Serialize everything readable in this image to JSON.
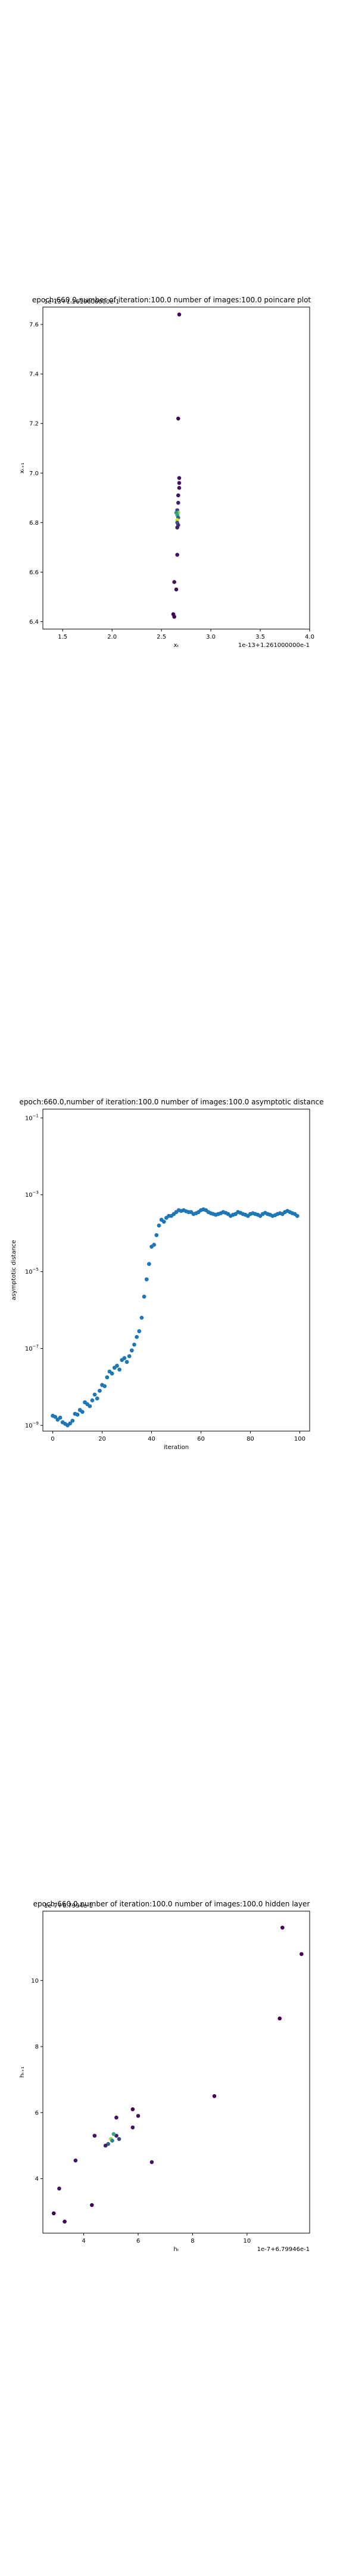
{
  "figure_title_overlap": "1e-13+1.2610000000e-1",
  "chart_data": [
    {
      "type": "scatter",
      "title": "epoch:660.0,number of iteration:100.0 number of images:100.0 poincare plot",
      "overlay_text": "1e-13+1.2610000000e-1",
      "xlabel": "xₜ",
      "ylabel": "xₜ₊₁",
      "x_offset_label": "1e-13+1.261000000e-1",
      "xlim": [
        1.3,
        4.0
      ],
      "ylim": [
        6.37,
        7.67
      ],
      "xticks": [
        "1.5",
        "2.0",
        "2.5",
        "3.0",
        "3.5",
        "4.0"
      ],
      "yticks": [
        "6.4",
        "6.6",
        "6.8",
        "7.0",
        "7.2",
        "7.4",
        "7.6"
      ],
      "colormap": [
        "#440154",
        "#3b528b",
        "#21918c",
        "#5ec962",
        "#fde725"
      ],
      "points": [
        {
          "x": 2.68,
          "y": 7.64,
          "c": 0.0
        },
        {
          "x": 2.67,
          "y": 7.22,
          "c": 0.0
        },
        {
          "x": 2.68,
          "y": 6.98,
          "c": 0.05
        },
        {
          "x": 2.68,
          "y": 6.96,
          "c": 0.05
        },
        {
          "x": 2.68,
          "y": 6.94,
          "c": 0.05
        },
        {
          "x": 2.67,
          "y": 6.91,
          "c": 0.05
        },
        {
          "x": 2.67,
          "y": 6.88,
          "c": 0.1
        },
        {
          "x": 2.66,
          "y": 6.85,
          "c": 0.2
        },
        {
          "x": 2.67,
          "y": 6.84,
          "c": 0.85
        },
        {
          "x": 2.65,
          "y": 6.84,
          "c": 0.55
        },
        {
          "x": 2.66,
          "y": 6.83,
          "c": 0.6
        },
        {
          "x": 2.67,
          "y": 6.82,
          "c": 0.3
        },
        {
          "x": 2.66,
          "y": 6.81,
          "c": 0.95
        },
        {
          "x": 2.66,
          "y": 6.8,
          "c": 0.25
        },
        {
          "x": 2.67,
          "y": 6.79,
          "c": 0.15
        },
        {
          "x": 2.66,
          "y": 6.78,
          "c": 0.1
        },
        {
          "x": 2.66,
          "y": 6.67,
          "c": 0.05
        },
        {
          "x": 2.63,
          "y": 6.56,
          "c": 0.05
        },
        {
          "x": 2.65,
          "y": 6.53,
          "c": 0.05
        },
        {
          "x": 2.62,
          "y": 6.43,
          "c": 0.0
        },
        {
          "x": 2.63,
          "y": 6.42,
          "c": 0.0
        }
      ]
    },
    {
      "type": "scatter",
      "title": "epoch:660.0,number of iteration:100.0  number of images:100.0 asymptotic distance",
      "xlabel": "iteration",
      "ylabel": "asymptotic distance",
      "log_y": true,
      "xlim": [
        -4,
        104
      ],
      "ylim_log10": [
        -9.15,
        -0.77
      ],
      "xticks": [
        "0",
        "20",
        "40",
        "60",
        "80",
        "100"
      ],
      "yticks": [
        {
          "base": "10",
          "exp": "−9",
          "value": -9
        },
        {
          "base": "10",
          "exp": "−7",
          "value": -7
        },
        {
          "base": "10",
          "exp": "−5",
          "value": -5
        },
        {
          "base": "10",
          "exp": "−3",
          "value": -3
        },
        {
          "base": "10",
          "exp": "−1",
          "value": -1
        }
      ],
      "point_color": "#1f77b4",
      "iterations": [
        0,
        1,
        2,
        3,
        4,
        5,
        6,
        7,
        8,
        9,
        10,
        11,
        12,
        13,
        14,
        15,
        16,
        17,
        18,
        19,
        20,
        21,
        22,
        23,
        24,
        25,
        26,
        27,
        28,
        29,
        30,
        31,
        32,
        33,
        34,
        35,
        36,
        37,
        38,
        39,
        40,
        41,
        42,
        43,
        44,
        45,
        46,
        47,
        48,
        49,
        50,
        51,
        52,
        53,
        54,
        55,
        56,
        57,
        58,
        59,
        60,
        61,
        62,
        63,
        64,
        65,
        66,
        67,
        68,
        69,
        70,
        71,
        72,
        73,
        74,
        75,
        76,
        77,
        78,
        79,
        80,
        81,
        82,
        83,
        84,
        85,
        86,
        87,
        88,
        89,
        90,
        91,
        92,
        93,
        94,
        95,
        96,
        97,
        98,
        99
      ],
      "log10_values": [
        -8.75,
        -8.78,
        -8.85,
        -8.8,
        -8.92,
        -8.96,
        -9.0,
        -8.95,
        -8.88,
        -8.7,
        -8.72,
        -8.6,
        -8.65,
        -8.4,
        -8.45,
        -8.5,
        -8.35,
        -8.2,
        -8.3,
        -8.1,
        -7.95,
        -7.98,
        -7.75,
        -7.6,
        -7.65,
        -7.5,
        -7.45,
        -7.55,
        -7.3,
        -7.25,
        -7.35,
        -7.2,
        -7.05,
        -6.9,
        -6.7,
        -6.55,
        -6.2,
        -5.65,
        -5.2,
        -4.8,
        -4.35,
        -4.3,
        -4.05,
        -3.8,
        -3.65,
        -3.7,
        -3.6,
        -3.55,
        -3.55,
        -3.5,
        -3.45,
        -3.4,
        -3.42,
        -3.4,
        -3.43,
        -3.45,
        -3.45,
        -3.5,
        -3.48,
        -3.45,
        -3.4,
        -3.38,
        -3.4,
        -3.45,
        -3.48,
        -3.5,
        -3.52,
        -3.5,
        -3.48,
        -3.45,
        -3.47,
        -3.5,
        -3.55,
        -3.52,
        -3.5,
        -3.45,
        -3.47,
        -3.5,
        -3.52,
        -3.55,
        -3.5,
        -3.48,
        -3.5,
        -3.52,
        -3.55,
        -3.5,
        -3.47,
        -3.5,
        -3.52,
        -3.55,
        -3.53,
        -3.5,
        -3.48,
        -3.5,
        -3.45,
        -3.42,
        -3.45,
        -3.48,
        -3.5,
        -3.55
      ]
    },
    {
      "type": "scatter",
      "title": "epoch:660.0,number of iteration:100.0  number of images:100.0 hidden layer",
      "overlay_text": "1e-7+6.7994e-1",
      "xlabel": "hₜ",
      "ylabel": "hₜ₊₁",
      "x_offset_label": "1e-7+6.79946e-1",
      "xlim": [
        2.5,
        12.3
      ],
      "ylim": [
        2.35,
        12.1
      ],
      "xticks": [
        {
          "label": "4",
          "v": 4
        },
        {
          "label": "6",
          "v": 6
        },
        {
          "label": "8",
          "v": 8
        },
        {
          "label": "10",
          "v": 10
        }
      ],
      "yticks": [
        {
          "label": "4",
          "v": 4
        },
        {
          "label": "6",
          "v": 6
        },
        {
          "label": "8",
          "v": 8
        },
        {
          "label": "10",
          "v": 10
        }
      ],
      "colormap": [
        "#440154",
        "#3b528b",
        "#21918c",
        "#5ec962",
        "#fde725"
      ],
      "points": [
        {
          "x": 11.3,
          "y": 11.6,
          "c": 0.0
        },
        {
          "x": 12.0,
          "y": 10.8,
          "c": 0.0
        },
        {
          "x": 11.2,
          "y": 8.85,
          "c": 0.0
        },
        {
          "x": 8.8,
          "y": 6.5,
          "c": 0.0
        },
        {
          "x": 5.8,
          "y": 6.1,
          "c": 0.0
        },
        {
          "x": 6.0,
          "y": 5.9,
          "c": 0.05
        },
        {
          "x": 5.2,
          "y": 5.85,
          "c": 0.05
        },
        {
          "x": 5.8,
          "y": 5.55,
          "c": 0.05
        },
        {
          "x": 4.4,
          "y": 5.3,
          "c": 0.05
        },
        {
          "x": 5.2,
          "y": 5.3,
          "c": 0.1
        },
        {
          "x": 5.1,
          "y": 5.35,
          "c": 0.6
        },
        {
          "x": 5.0,
          "y": 5.2,
          "c": 0.85
        },
        {
          "x": 5.05,
          "y": 5.15,
          "c": 0.45
        },
        {
          "x": 4.9,
          "y": 5.05,
          "c": 0.3
        },
        {
          "x": 5.3,
          "y": 5.2,
          "c": 0.2
        },
        {
          "x": 4.8,
          "y": 5.0,
          "c": 0.1
        },
        {
          "x": 6.5,
          "y": 4.5,
          "c": 0.05
        },
        {
          "x": 3.7,
          "y": 4.55,
          "c": 0.05
        },
        {
          "x": 3.1,
          "y": 3.7,
          "c": 0.05
        },
        {
          "x": 4.3,
          "y": 3.2,
          "c": 0.0
        },
        {
          "x": 2.9,
          "y": 2.95,
          "c": 0.0
        },
        {
          "x": 3.3,
          "y": 2.7,
          "c": 0.0
        }
      ]
    }
  ]
}
